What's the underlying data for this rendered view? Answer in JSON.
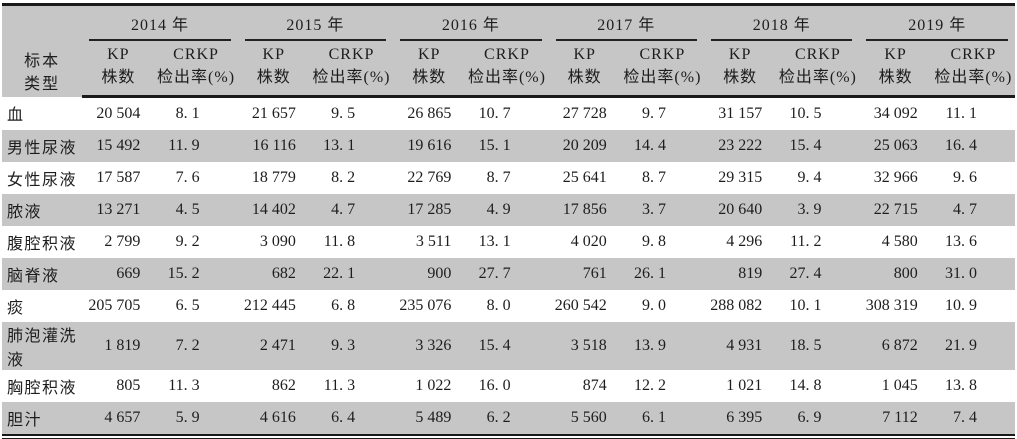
{
  "colors": {
    "stripe_gray": "#c6c6c6",
    "rule_black": "#1a1a1a",
    "text": "#1d1d1d",
    "page_bg": "#ffffff"
  },
  "table": {
    "corner_header_line1": "标本",
    "corner_header_line2": "类型",
    "years": [
      "2014 年",
      "2015 年",
      "2016 年",
      "2017 年",
      "2018 年",
      "2019 年"
    ],
    "kp_line1": "KP",
    "kp_line2": "株数",
    "crkp_line1": "CRKP",
    "crkp_line2": "检出率(%)",
    "rows": [
      {
        "type": "血",
        "cells": [
          "20 504",
          "8. 1",
          "21 657",
          "9. 5",
          "26 865",
          "10. 7",
          "27 728",
          "9. 7",
          "31 157",
          "10. 5",
          "34 092",
          "11. 1"
        ]
      },
      {
        "type": "男性尿液",
        "cells": [
          "15 492",
          "11. 9",
          "16 116",
          "13. 1",
          "19 616",
          "15. 1",
          "20 209",
          "14. 4",
          "23 222",
          "15. 4",
          "25 063",
          "16. 4"
        ]
      },
      {
        "type": "女性尿液",
        "cells": [
          "17 587",
          "7. 6",
          "18 779",
          "8. 2",
          "22 769",
          "8. 7",
          "25 641",
          "8. 7",
          "29 315",
          "9. 4",
          "32 966",
          "9. 6"
        ]
      },
      {
        "type": "脓液",
        "cells": [
          "13 271",
          "4. 5",
          "14 402",
          "4. 7",
          "17 285",
          "4. 9",
          "17 856",
          "3. 7",
          "20 640",
          "3. 9",
          "22 715",
          "4. 7"
        ]
      },
      {
        "type": "腹腔积液",
        "cells": [
          "2 799",
          "9. 2",
          "3 090",
          "11. 8",
          "3 511",
          "13. 1",
          "4 020",
          "9. 8",
          "4 296",
          "11. 2",
          "4 580",
          "13. 6"
        ]
      },
      {
        "type": "脑脊液",
        "cells": [
          "669",
          "15. 2",
          "682",
          "22. 1",
          "900",
          "27. 7",
          "761",
          "26. 1",
          "819",
          "27. 4",
          "800",
          "31. 0"
        ]
      },
      {
        "type": "痰",
        "cells": [
          "205 705",
          "6. 5",
          "212 445",
          "6. 8",
          "235 076",
          "8. 0",
          "260 542",
          "9. 0",
          "288 082",
          "10. 1",
          "308 319",
          "10. 9"
        ]
      },
      {
        "type": "肺泡灌洗液",
        "cells": [
          "1 819",
          "7. 2",
          "2 471",
          "9. 3",
          "3 326",
          "15. 4",
          "3 518",
          "13. 9",
          "4 931",
          "18. 5",
          "6 872",
          "21. 9"
        ]
      },
      {
        "type": "胸腔积液",
        "cells": [
          "805",
          "11. 3",
          "862",
          "11. 3",
          "1 022",
          "16. 0",
          "874",
          "12. 2",
          "1 021",
          "14. 8",
          "1 045",
          "13. 8"
        ]
      },
      {
        "type": "胆汁",
        "cells": [
          "4 657",
          "5. 9",
          "4 616",
          "6. 4",
          "5 489",
          "6. 2",
          "5 560",
          "6. 1",
          "6 395",
          "6. 9",
          "7 112",
          "7. 4"
        ]
      }
    ]
  },
  "chart_data": {
    "type": "table",
    "years": [
      2014,
      2015,
      2016,
      2017,
      2018,
      2019
    ],
    "column_groups_per_year": [
      "KP 株数",
      "CRKP 检出率(%)"
    ],
    "rows": [
      {
        "specimen": "血",
        "kp_counts": [
          20504,
          21657,
          26865,
          27728,
          31157,
          34092
        ],
        "crkp_rates": [
          8.1,
          9.5,
          10.7,
          9.7,
          10.5,
          11.1
        ]
      },
      {
        "specimen": "男性尿液",
        "kp_counts": [
          15492,
          16116,
          19616,
          20209,
          23222,
          25063
        ],
        "crkp_rates": [
          11.9,
          13.1,
          15.1,
          14.4,
          15.4,
          16.4
        ]
      },
      {
        "specimen": "女性尿液",
        "kp_counts": [
          17587,
          18779,
          22769,
          25641,
          29315,
          32966
        ],
        "crkp_rates": [
          7.6,
          8.2,
          8.7,
          8.7,
          9.4,
          9.6
        ]
      },
      {
        "specimen": "脓液",
        "kp_counts": [
          13271,
          14402,
          17285,
          17856,
          20640,
          22715
        ],
        "crkp_rates": [
          4.5,
          4.7,
          4.9,
          3.7,
          3.9,
          4.7
        ]
      },
      {
        "specimen": "腹腔积液",
        "kp_counts": [
          2799,
          3090,
          3511,
          4020,
          4296,
          4580
        ],
        "crkp_rates": [
          9.2,
          11.8,
          13.1,
          9.8,
          11.2,
          13.6
        ]
      },
      {
        "specimen": "脑脊液",
        "kp_counts": [
          669,
          682,
          900,
          761,
          819,
          800
        ],
        "crkp_rates": [
          15.2,
          22.1,
          27.7,
          26.1,
          27.4,
          31.0
        ]
      },
      {
        "specimen": "痰",
        "kp_counts": [
          205705,
          212445,
          235076,
          260542,
          288082,
          308319
        ],
        "crkp_rates": [
          6.5,
          6.8,
          8.0,
          9.0,
          10.1,
          10.9
        ]
      },
      {
        "specimen": "肺泡灌洗液",
        "kp_counts": [
          1819,
          2471,
          3326,
          3518,
          4931,
          6872
        ],
        "crkp_rates": [
          7.2,
          9.3,
          15.4,
          13.9,
          18.5,
          21.9
        ]
      },
      {
        "specimen": "胸腔积液",
        "kp_counts": [
          805,
          862,
          1022,
          874,
          1021,
          1045
        ],
        "crkp_rates": [
          11.3,
          11.3,
          16.0,
          12.2,
          14.8,
          13.8
        ]
      },
      {
        "specimen": "胆汁",
        "kp_counts": [
          4657,
          4616,
          5489,
          5560,
          6395,
          7112
        ],
        "crkp_rates": [
          5.9,
          6.4,
          6.2,
          6.1,
          6.9,
          7.4
        ]
      }
    ]
  }
}
